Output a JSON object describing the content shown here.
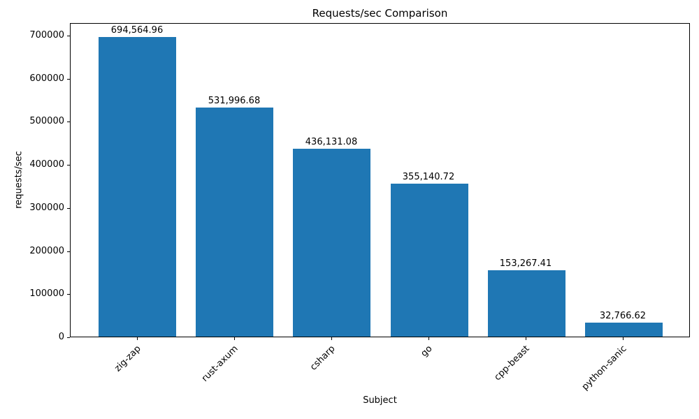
{
  "chart_data": {
    "type": "bar",
    "title": "Requests/sec Comparison",
    "xlabel": "Subject",
    "ylabel": "requests/sec",
    "categories": [
      "zig-zap",
      "rust-axum",
      "csharp",
      "go",
      "cpp-beast",
      "python-sanic"
    ],
    "values": [
      694564.96,
      531996.68,
      436131.08,
      355140.72,
      153267.41,
      32766.62
    ],
    "value_labels": [
      "694,564.96",
      "531,996.68",
      "436,131.08",
      "355,140.72",
      "153,267.41",
      "32,766.62"
    ],
    "yticks": [
      0,
      100000,
      200000,
      300000,
      400000,
      500000,
      600000,
      700000
    ],
    "ytick_labels": [
      "0",
      "100000",
      "200000",
      "300000",
      "400000",
      "500000",
      "600000",
      "700000"
    ],
    "ylim": [
      0,
      729293
    ],
    "bar_color": "#1f77b4",
    "grid": false,
    "legend_position": "none"
  }
}
